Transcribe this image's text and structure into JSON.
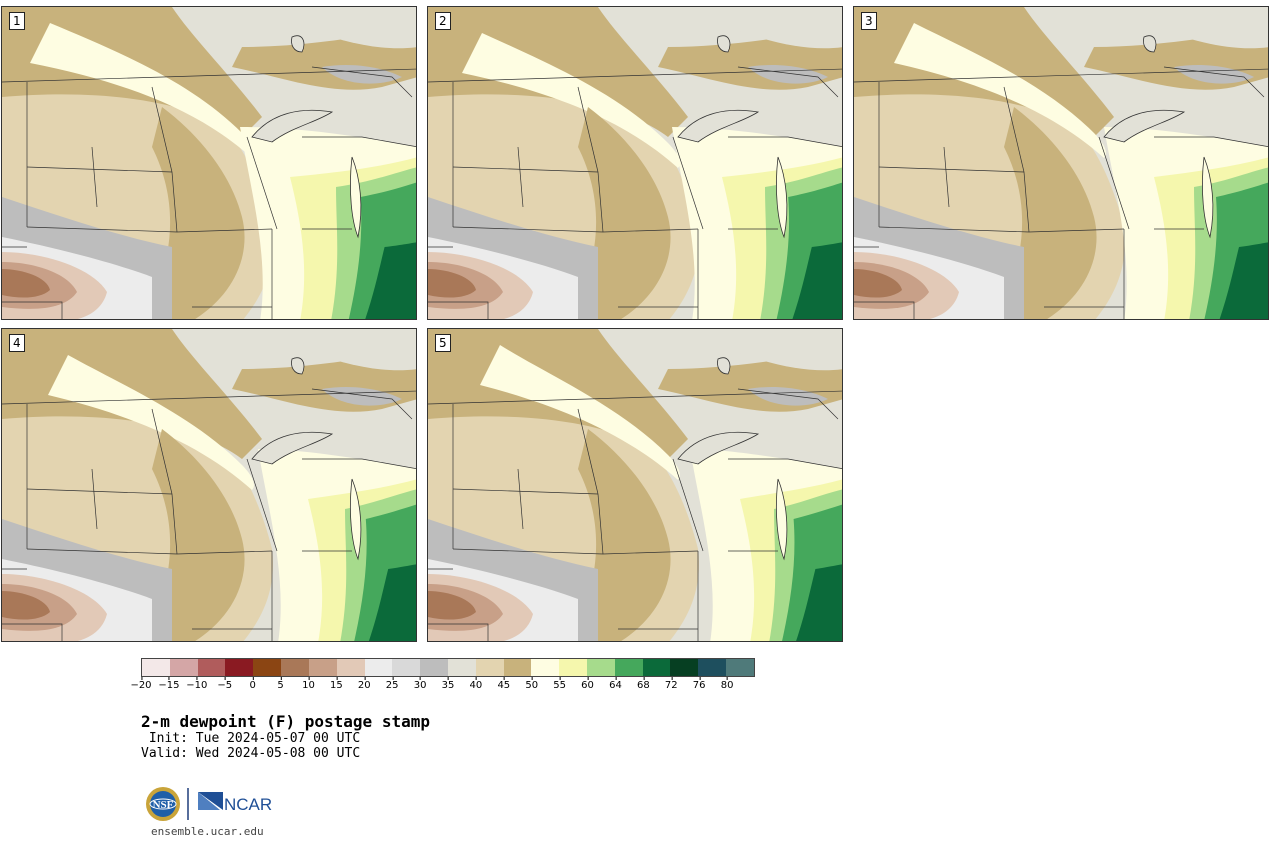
{
  "panels": [
    {
      "number": "1",
      "variant": 1
    },
    {
      "number": "2",
      "variant": 2
    },
    {
      "number": "3",
      "variant": 3
    },
    {
      "number": "4",
      "variant": 4
    },
    {
      "number": "5",
      "variant": 5
    }
  ],
  "colorbar": {
    "colors": [
      "#f3e8e8",
      "#d4a6a6",
      "#b05c5c",
      "#8a1a22",
      "#8b4513",
      "#a97858",
      "#c8a088",
      "#e2c9b7",
      "#ececec",
      "#d9d9d9",
      "#bdbdbd",
      "#e2e1d7",
      "#e3d4b0",
      "#c8b27c",
      "#fefde2",
      "#f5f7ad",
      "#a6db8c",
      "#45a85c",
      "#0b6a3a",
      "#063f22",
      "#1e4f5e",
      "#4f7a7a"
    ],
    "ticks": [
      "−20",
      "−15",
      "−10",
      "−5",
      "0",
      "5",
      "10",
      "15",
      "20",
      "25",
      "30",
      "35",
      "40",
      "45",
      "50",
      "55",
      "60",
      "64",
      "68",
      "72",
      "76",
      "80"
    ]
  },
  "title": "2-m dewpoint (F) postage stamp",
  "init_line": " Init: Tue 2024-05-07 00 UTC",
  "valid_line": "Valid: Wed 2024-05-08 00 UTC",
  "logos": {
    "nsf": "NSF",
    "ncar": "NCAR"
  },
  "url": "ensemble.ucar.edu"
}
